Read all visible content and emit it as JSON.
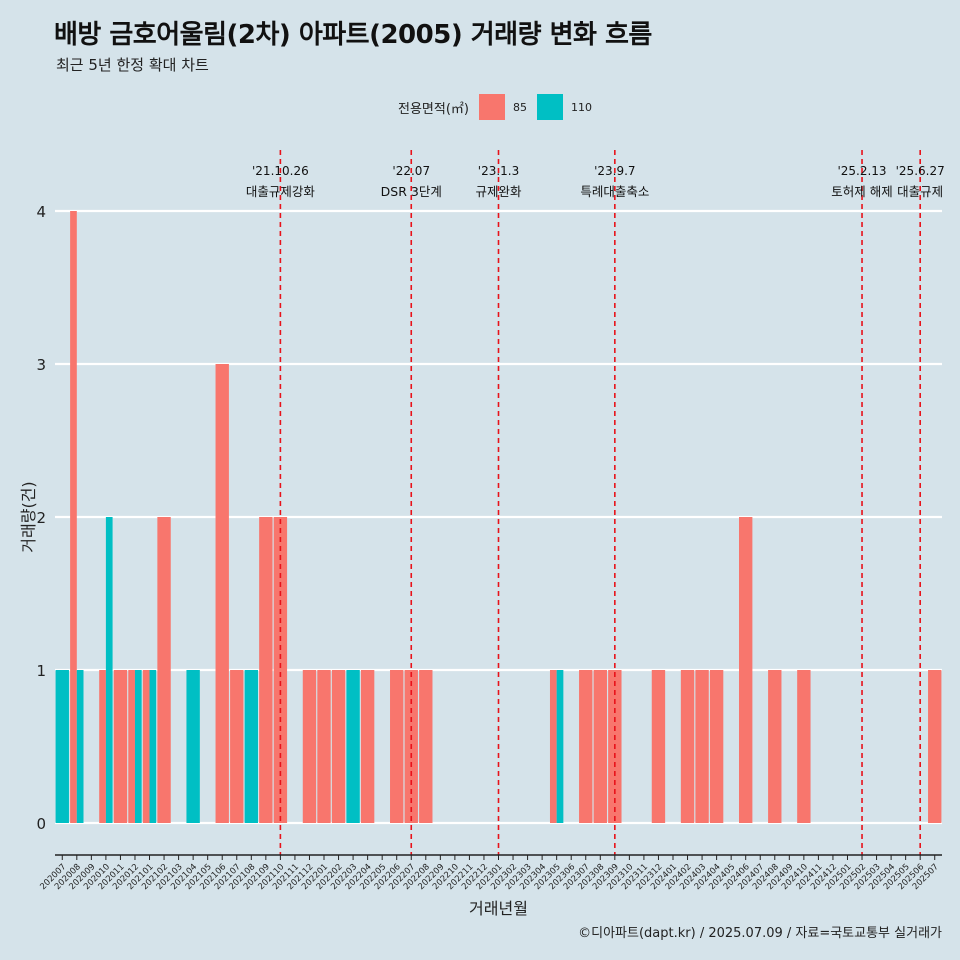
{
  "title": "배방 금호어울림(2차) 아파트(2005) 거래량 변화 흐름",
  "subtitle": "최근 5년 한정 확대 차트",
  "caption": "©디아파트(dapt.kr) / 2025.07.09 / 자료=국토교통부 실거래가",
  "legend": {
    "title": "전용면적(㎡)",
    "items": [
      {
        "label": "85",
        "color": "#f8766d"
      },
      {
        "label": "110",
        "color": "#00bfc4"
      }
    ]
  },
  "chart_data": {
    "type": "bar",
    "xlabel": "거래년월",
    "ylabel": "거래량(건)",
    "ylim": [
      0,
      4
    ],
    "yticks": [
      0,
      1,
      2,
      3,
      4
    ],
    "grid": "horizontal",
    "legend_position": "top",
    "categories": [
      "202007",
      "202008",
      "202009",
      "202010",
      "202011",
      "202012",
      "202101",
      "202102",
      "202103",
      "202104",
      "202105",
      "202106",
      "202107",
      "202108",
      "202109",
      "202110",
      "202111",
      "202112",
      "202201",
      "202202",
      "202203",
      "202204",
      "202205",
      "202206",
      "202207",
      "202208",
      "202209",
      "202210",
      "202211",
      "202212",
      "202301",
      "202302",
      "202303",
      "202304",
      "202305",
      "202306",
      "202307",
      "202308",
      "202309",
      "202310",
      "202311",
      "202312",
      "202401",
      "202402",
      "202403",
      "202404",
      "202405",
      "202406",
      "202407",
      "202408",
      "202409",
      "202410",
      "202411",
      "202412",
      "202501",
      "202502",
      "202503",
      "202504",
      "202505",
      "202506",
      "202507"
    ],
    "bars": [
      {
        "month": "202007",
        "series": "110",
        "value": 1,
        "dodge": "full"
      },
      {
        "month": "202008",
        "series": "85",
        "value": 4,
        "dodge": "left"
      },
      {
        "month": "202008",
        "series": "110",
        "value": 1,
        "dodge": "right"
      },
      {
        "month": "202010",
        "series": "85",
        "value": 1,
        "dodge": "left"
      },
      {
        "month": "202010",
        "series": "110",
        "value": 2,
        "dodge": "right"
      },
      {
        "month": "202011",
        "series": "85",
        "value": 1,
        "dodge": "full"
      },
      {
        "month": "202012",
        "series": "85",
        "value": 1,
        "dodge": "left"
      },
      {
        "month": "202012",
        "series": "110",
        "value": 1,
        "dodge": "right"
      },
      {
        "month": "202101",
        "series": "85",
        "value": 1,
        "dodge": "left"
      },
      {
        "month": "202101",
        "series": "110",
        "value": 1,
        "dodge": "right"
      },
      {
        "month": "202102",
        "series": "85",
        "value": 2,
        "dodge": "full"
      },
      {
        "month": "202104",
        "series": "110",
        "value": 1,
        "dodge": "full"
      },
      {
        "month": "202106",
        "series": "85",
        "value": 3,
        "dodge": "full"
      },
      {
        "month": "202107",
        "series": "85",
        "value": 1,
        "dodge": "full"
      },
      {
        "month": "202108",
        "series": "110",
        "value": 1,
        "dodge": "full"
      },
      {
        "month": "202109",
        "series": "85",
        "value": 2,
        "dodge": "full"
      },
      {
        "month": "202110",
        "series": "85",
        "value": 2,
        "dodge": "full"
      },
      {
        "month": "202112",
        "series": "85",
        "value": 1,
        "dodge": "full"
      },
      {
        "month": "202201",
        "series": "85",
        "value": 1,
        "dodge": "full"
      },
      {
        "month": "202202",
        "series": "85",
        "value": 1,
        "dodge": "full"
      },
      {
        "month": "202203",
        "series": "110",
        "value": 1,
        "dodge": "full"
      },
      {
        "month": "202204",
        "series": "85",
        "value": 1,
        "dodge": "full"
      },
      {
        "month": "202206",
        "series": "85",
        "value": 1,
        "dodge": "full"
      },
      {
        "month": "202207",
        "series": "85",
        "value": 1,
        "dodge": "full"
      },
      {
        "month": "202208",
        "series": "85",
        "value": 1,
        "dodge": "full"
      },
      {
        "month": "202305",
        "series": "85",
        "value": 1,
        "dodge": "left"
      },
      {
        "month": "202305",
        "series": "110",
        "value": 1,
        "dodge": "right"
      },
      {
        "month": "202307",
        "series": "85",
        "value": 1,
        "dodge": "full"
      },
      {
        "month": "202308",
        "series": "85",
        "value": 1,
        "dodge": "full"
      },
      {
        "month": "202309",
        "series": "85",
        "value": 1,
        "dodge": "full"
      },
      {
        "month": "202312",
        "series": "85",
        "value": 1,
        "dodge": "full"
      },
      {
        "month": "202402",
        "series": "85",
        "value": 1,
        "dodge": "full"
      },
      {
        "month": "202403",
        "series": "85",
        "value": 1,
        "dodge": "full"
      },
      {
        "month": "202404",
        "series": "85",
        "value": 1,
        "dodge": "full"
      },
      {
        "month": "202406",
        "series": "85",
        "value": 2,
        "dodge": "full"
      },
      {
        "month": "202408",
        "series": "85",
        "value": 1,
        "dodge": "full"
      },
      {
        "month": "202410",
        "series": "85",
        "value": 1,
        "dodge": "full"
      },
      {
        "month": "202507",
        "series": "85",
        "value": 1,
        "dodge": "full"
      }
    ],
    "events": [
      {
        "month": "202110",
        "date": "'21.10.26",
        "label": "대출규제강화"
      },
      {
        "month": "202207",
        "date": "'22.07",
        "label": "DSR 3단계"
      },
      {
        "month": "202301",
        "date": "'23.1.3",
        "label": "규제완화"
      },
      {
        "month": "202309",
        "date": "'23.9.7",
        "label": "특례대출축소"
      },
      {
        "month": "202502",
        "date": "'25.2.13",
        "label": "토허제 해제"
      },
      {
        "month": "202506",
        "date": "'25.6.27",
        "label": "대출규제"
      }
    ]
  }
}
